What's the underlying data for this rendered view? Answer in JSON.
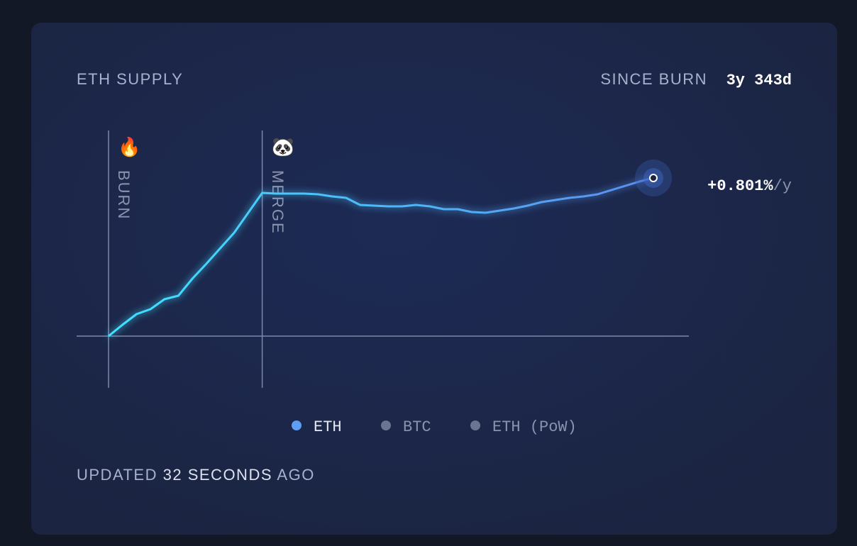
{
  "header": {
    "title": "ETH SUPPLY",
    "since_label": "SINCE BURN",
    "since_value": "3y 343d"
  },
  "chart_data": {
    "type": "line",
    "x": [
      0,
      0.1,
      0.2,
      0.3,
      0.4,
      0.5,
      0.6,
      0.7,
      0.8,
      0.9,
      1.0,
      1.1,
      1.2,
      1.3,
      1.4,
      1.5,
      1.6,
      1.7,
      1.8,
      1.9,
      2.0,
      2.1,
      2.2,
      2.3,
      2.4,
      2.5,
      2.6,
      2.7,
      2.8,
      2.9,
      3.0,
      3.1,
      3.2,
      3.3,
      3.4,
      3.5,
      3.6,
      3.7,
      3.8,
      3.9
    ],
    "series": [
      {
        "name": "ETH",
        "color": "#3fe3ff",
        "end_color": "#5b8ff0",
        "values": [
          0,
          16,
          31,
          38,
          52,
          57,
          81,
          102,
          124,
          146,
          174,
          202,
          201,
          201,
          201,
          200,
          197,
          195,
          185,
          184,
          183,
          183,
          185,
          183,
          179,
          179,
          175,
          174,
          177,
          180,
          184,
          189,
          192,
          195,
          197,
          200,
          206,
          212,
          218,
          223
        ]
      }
    ],
    "events": [
      {
        "label": "BURN",
        "icon": "🔥",
        "x": 0
      },
      {
        "label": "MERGE",
        "icon": "🐼",
        "x": 1.1
      }
    ],
    "end_label": "+0.801%",
    "end_unit": "/y",
    "legend": [
      {
        "name": "ETH",
        "color": "#5f9ef5",
        "active": true
      },
      {
        "name": "BTC",
        "color": "#6b7590",
        "active": false
      },
      {
        "name": "ETH (PoW)",
        "color": "#6b7590",
        "active": false
      }
    ]
  },
  "footer": {
    "prefix": "UPDATED",
    "time": "32 SECONDS",
    "suffix": "AGO"
  }
}
